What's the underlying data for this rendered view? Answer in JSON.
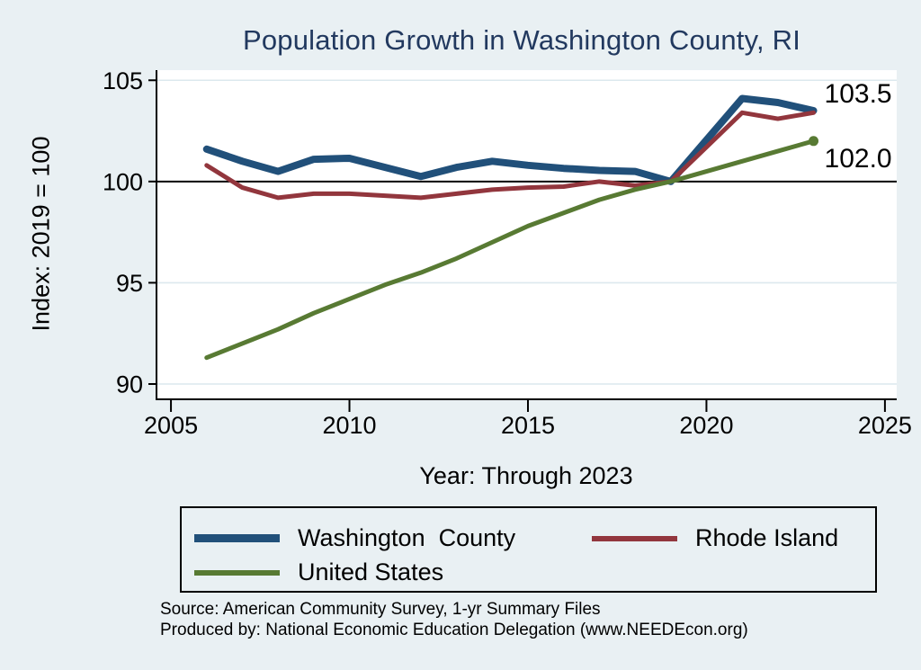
{
  "chart_data": {
    "type": "line",
    "title": "Population Growth in Washington County, RI",
    "xlabel": "Year: Through 2023",
    "ylabel": "Index: 2019 = 100",
    "x_ticks": [
      2005,
      2010,
      2015,
      2020,
      2025
    ],
    "y_ticks": [
      90,
      95,
      100,
      105
    ],
    "xlim": [
      2004.57,
      2025.33
    ],
    "ylim": [
      89.2,
      105.5
    ],
    "reference_line_y": 100,
    "grid": true,
    "legend_position": "bottom",
    "note": "2020 value missing (line connects 2019 to 2021)",
    "years": [
      2006,
      2007,
      2008,
      2009,
      2010,
      2011,
      2012,
      2013,
      2014,
      2015,
      2016,
      2017,
      2018,
      2019,
      2020,
      2021,
      2022,
      2023
    ],
    "series": [
      {
        "name": "Washington  County",
        "color": "#21507a",
        "line_width": 8,
        "end_marker": false,
        "values": [
          101.6,
          101.0,
          100.5,
          101.1,
          101.15,
          100.7,
          100.25,
          100.7,
          101.0,
          100.8,
          100.65,
          100.55,
          100.5,
          100.0,
          null,
          104.1,
          103.9,
          103.5
        ]
      },
      {
        "name": "Rhode Island",
        "color": "#92363d",
        "line_width": 5,
        "end_marker": false,
        "values": [
          100.8,
          99.7,
          99.2,
          99.4,
          99.4,
          99.3,
          99.2,
          99.4,
          99.6,
          99.7,
          99.75,
          100.0,
          99.8,
          100.0,
          null,
          103.4,
          103.1,
          103.4
        ]
      },
      {
        "name": "United States",
        "color": "#587a33",
        "line_width": 5,
        "end_marker": true,
        "values": [
          91.3,
          92.0,
          92.7,
          93.5,
          94.2,
          94.9,
          95.5,
          96.2,
          97.0,
          97.8,
          98.45,
          99.1,
          99.6,
          100.0,
          null,
          101.0,
          101.5,
          102.0
        ]
      }
    ],
    "end_labels": [
      {
        "text": "103.5",
        "series": 0,
        "placement": "above-end"
      },
      {
        "text": "102.0",
        "series": 2,
        "placement": "below-end"
      }
    ]
  },
  "colors": {
    "page_background": "#e9f0f3",
    "plot_background": "#ffffff",
    "grid_line": "#dce8ee",
    "reference_line": "#000000",
    "axis": "#000000",
    "title_text": "#22395f",
    "tick_text": "#000000"
  },
  "footer": {
    "source_line": "Source: American Community Survey, 1-yr Summary Files",
    "produced_line": "Produced by: National Economic Education Delegation (www.NEEDEcon.org)"
  }
}
